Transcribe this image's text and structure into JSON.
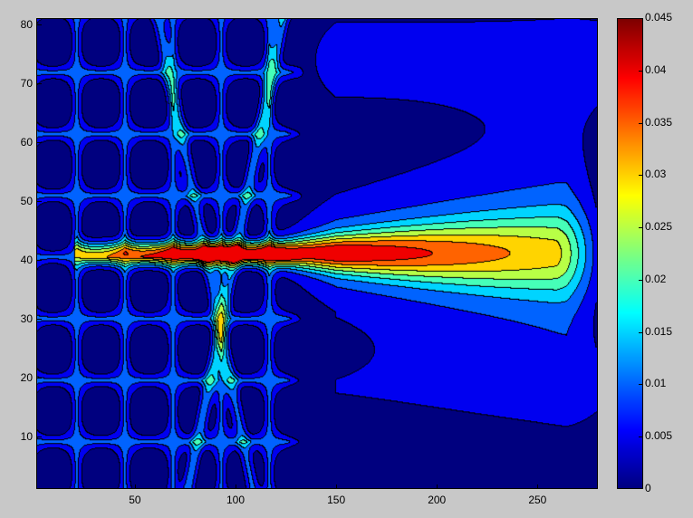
{
  "chart_data": {
    "type": "heatmap",
    "subtype": "filled-contour",
    "colormap": "jet",
    "xlim": [
      1,
      280
    ],
    "ylim": [
      1,
      81
    ],
    "x_ticks": [
      "50",
      "100",
      "150",
      "200",
      "250"
    ],
    "y_ticks": [
      "10",
      "20",
      "30",
      "40",
      "50",
      "60",
      "70",
      "80"
    ],
    "colorbar": {
      "range": [
        0,
        0.045
      ],
      "ticks": [
        "0",
        "0.005",
        "0.01",
        "0.015",
        "0.02",
        "0.025",
        "0.03",
        "0.035",
        "0.04",
        "0.045"
      ]
    },
    "contour_levels": [
      0,
      0.005,
      0.01,
      0.015,
      0.02,
      0.025,
      0.03,
      0.035,
      0.04,
      0.045
    ],
    "features": {
      "main_ridge_y": 41,
      "peak_value": 0.042,
      "peak_x": 90
    },
    "grid": false,
    "background": "#c8c8c8"
  }
}
